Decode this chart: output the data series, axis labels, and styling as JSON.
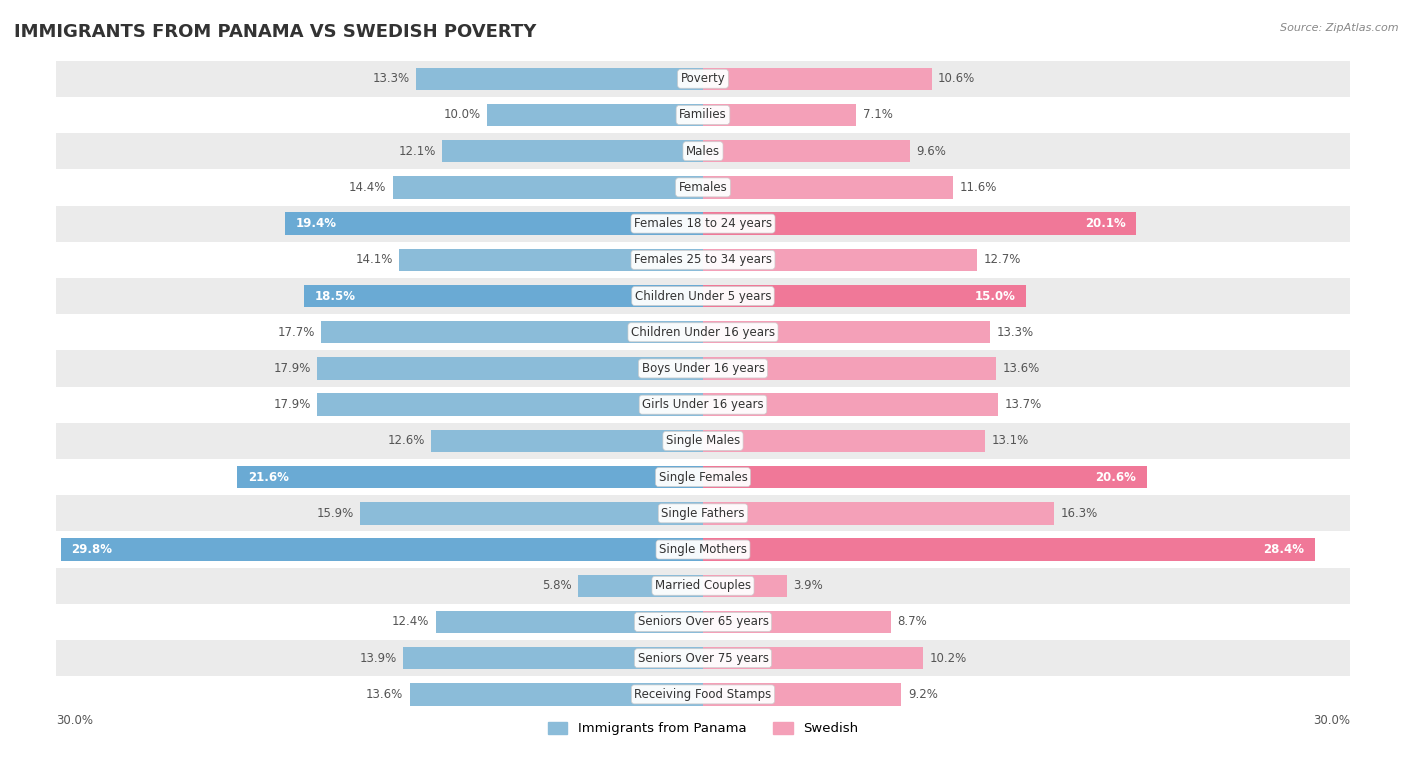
{
  "title": "IMMIGRANTS FROM PANAMA VS SWEDISH POVERTY",
  "source": "Source: ZipAtlas.com",
  "categories": [
    "Poverty",
    "Families",
    "Males",
    "Females",
    "Females 18 to 24 years",
    "Females 25 to 34 years",
    "Children Under 5 years",
    "Children Under 16 years",
    "Boys Under 16 years",
    "Girls Under 16 years",
    "Single Males",
    "Single Females",
    "Single Fathers",
    "Single Mothers",
    "Married Couples",
    "Seniors Over 65 years",
    "Seniors Over 75 years",
    "Receiving Food Stamps"
  ],
  "panama_values": [
    13.3,
    10.0,
    12.1,
    14.4,
    19.4,
    14.1,
    18.5,
    17.7,
    17.9,
    17.9,
    12.6,
    21.6,
    15.9,
    29.8,
    5.8,
    12.4,
    13.9,
    13.6
  ],
  "swedish_values": [
    10.6,
    7.1,
    9.6,
    11.6,
    20.1,
    12.7,
    15.0,
    13.3,
    13.6,
    13.7,
    13.1,
    20.6,
    16.3,
    28.4,
    3.9,
    8.7,
    10.2,
    9.2
  ],
  "panama_color": "#8bbcd9",
  "swedish_color": "#f4a0b8",
  "panama_highlight_color": "#6aaad4",
  "swedish_highlight_color": "#f07898",
  "highlight_rows": [
    4,
    6,
    11,
    13
  ],
  "xlim": 30.0,
  "legend_panama": "Immigrants from Panama",
  "legend_swedish": "Swedish",
  "bg_color": "#ffffff",
  "row_bg_alt": "#ebebeb",
  "title_fontsize": 13,
  "label_fontsize": 8.5,
  "value_fontsize": 8.5,
  "bar_height": 0.62
}
